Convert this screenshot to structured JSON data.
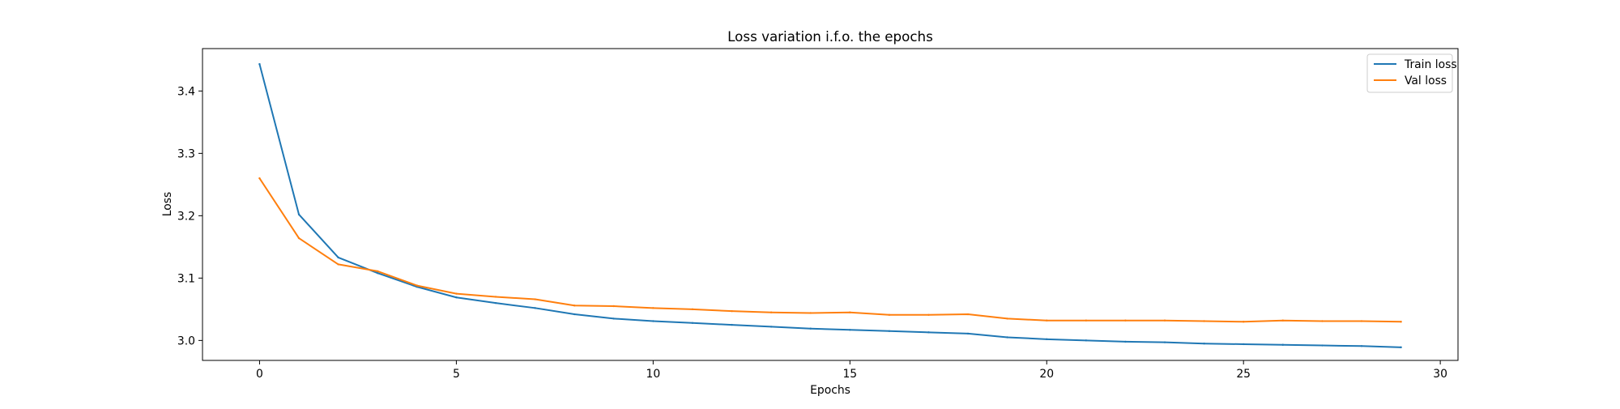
{
  "chart_data": {
    "type": "line",
    "title": "Loss variation i.f.o. the epochs",
    "xlabel": "Epochs",
    "ylabel": "Loss",
    "xlim": [
      -1.45,
      30.45
    ],
    "ylim": [
      2.968,
      3.468
    ],
    "xticks": [
      0,
      5,
      10,
      15,
      20,
      25,
      30
    ],
    "yticks": [
      3.0,
      3.1,
      3.2,
      3.3,
      3.4
    ],
    "ytick_labels": [
      "3.0",
      "3.1",
      "3.2",
      "3.3",
      "3.4"
    ],
    "grid": false,
    "legend": {
      "placement": "upper right"
    },
    "x": [
      0,
      1,
      2,
      3,
      4,
      5,
      6,
      7,
      8,
      9,
      10,
      11,
      12,
      13,
      14,
      15,
      16,
      17,
      18,
      19,
      20,
      21,
      22,
      23,
      24,
      25,
      26,
      27,
      28,
      29
    ],
    "series": [
      {
        "name": "Train loss",
        "color": "#1f77b4",
        "values": [
          3.443,
          3.202,
          3.133,
          3.108,
          3.086,
          3.069,
          3.06,
          3.052,
          3.042,
          3.035,
          3.031,
          3.028,
          3.025,
          3.022,
          3.019,
          3.017,
          3.015,
          3.013,
          3.011,
          3.005,
          3.002,
          3.0,
          2.998,
          2.997,
          2.995,
          2.994,
          2.993,
          2.992,
          2.991,
          2.989
        ]
      },
      {
        "name": "Val loss",
        "color": "#ff7f0e",
        "values": [
          3.26,
          3.164,
          3.122,
          3.111,
          3.088,
          3.075,
          3.07,
          3.066,
          3.056,
          3.055,
          3.052,
          3.05,
          3.047,
          3.045,
          3.044,
          3.045,
          3.041,
          3.041,
          3.042,
          3.035,
          3.032,
          3.032,
          3.032,
          3.032,
          3.031,
          3.03,
          3.032,
          3.031,
          3.031,
          3.03
        ]
      }
    ]
  }
}
